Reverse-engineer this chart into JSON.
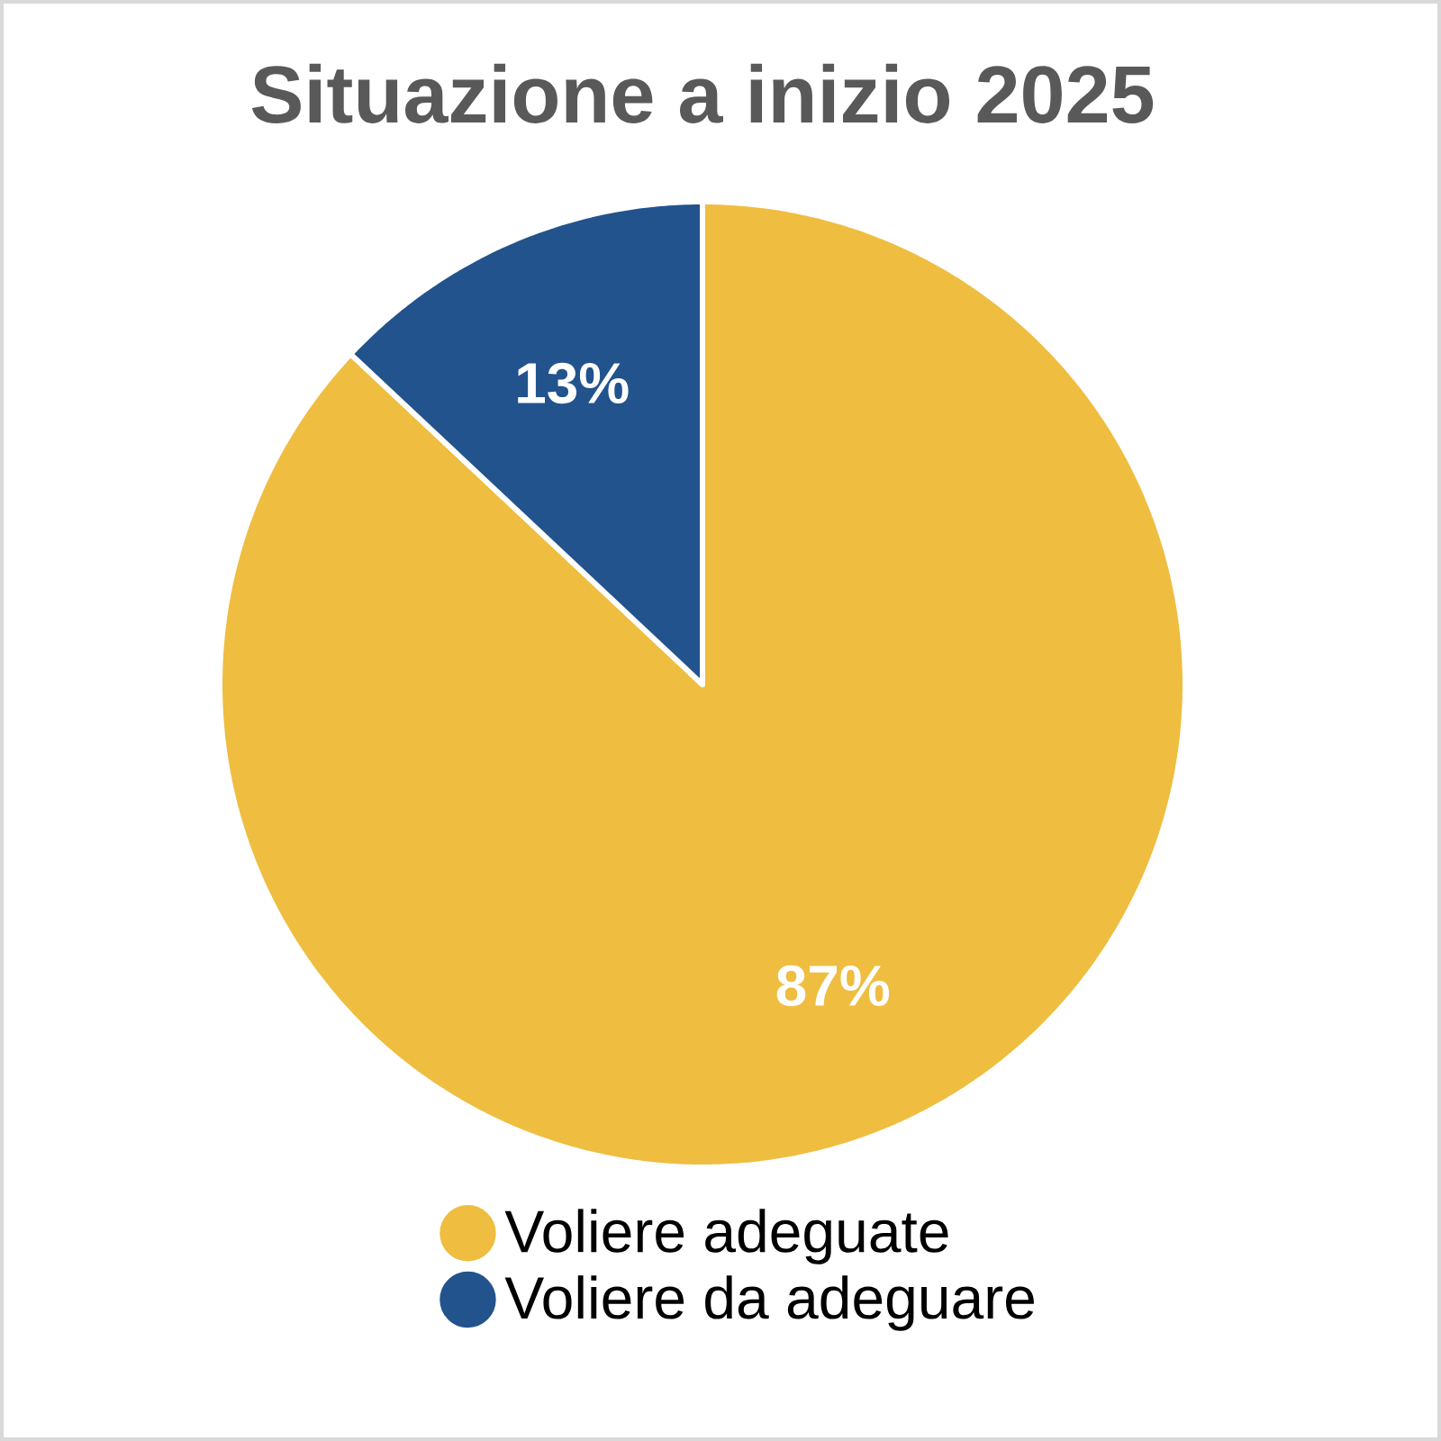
{
  "chart_data": {
    "type": "pie",
    "title": "Situazione a inizio 2025",
    "categories": [
      "Voliere adeguate",
      "Voliere da adeguare"
    ],
    "values": [
      87,
      13
    ],
    "value_labels": [
      "87%",
      "13%"
    ],
    "colors": [
      "#efbd40",
      "#22538d"
    ],
    "legend": "bottom"
  }
}
